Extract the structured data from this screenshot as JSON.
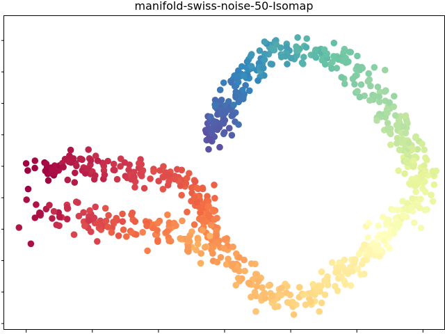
{
  "chart_data": {
    "type": "scatter",
    "title": "manifold-swiss-noise-50-Isomap",
    "xlabel": "",
    "ylabel": "",
    "xlim": [
      0,
      1
    ],
    "ylim": [
      0,
      1
    ],
    "xticks": [
      0.05,
      0.2,
      0.35,
      0.5,
      0.65,
      0.8,
      0.95
    ],
    "yticks": [
      0.02,
      0.12,
      0.22,
      0.32,
      0.42,
      0.52,
      0.62,
      0.72,
      0.82,
      0.92
    ],
    "grid": false,
    "legend": "none",
    "color_map": "Spectral (red → orange → yellow → green → blue → purple along the manifold)",
    "anchor_colors": [
      "#9e0142",
      "#d53e4f",
      "#f46d43",
      "#fdae61",
      "#fee08b",
      "#ffffbf",
      "#e6f598",
      "#abdda4",
      "#66c2a5",
      "#3288bd",
      "#5e4fa2"
    ],
    "curve_path": [
      [
        0.07,
        0.5
      ],
      [
        0.11,
        0.52
      ],
      [
        0.2,
        0.52
      ],
      [
        0.35,
        0.5
      ],
      [
        0.43,
        0.47
      ],
      [
        0.44,
        0.42
      ],
      [
        0.47,
        0.32
      ],
      [
        0.51,
        0.22
      ],
      [
        0.57,
        0.14
      ],
      [
        0.63,
        0.1
      ],
      [
        0.68,
        0.1
      ],
      [
        0.74,
        0.15
      ],
      [
        0.83,
        0.25
      ],
      [
        0.93,
        0.39
      ],
      [
        0.95,
        0.45
      ],
      [
        0.93,
        0.56
      ],
      [
        0.84,
        0.77
      ],
      [
        0.77,
        0.85
      ],
      [
        0.7,
        0.89
      ],
      [
        0.63,
        0.89
      ],
      [
        0.55,
        0.82
      ],
      [
        0.51,
        0.72
      ],
      [
        0.46,
        0.6
      ]
    ],
    "inner_band": [
      [
        0.07,
        0.37
      ],
      [
        0.13,
        0.37
      ],
      [
        0.22,
        0.33
      ],
      [
        0.3,
        0.33
      ],
      [
        0.38,
        0.32
      ],
      [
        0.42,
        0.29
      ],
      [
        0.46,
        0.26
      ]
    ],
    "point_count": 900,
    "noise": 0.016
  }
}
